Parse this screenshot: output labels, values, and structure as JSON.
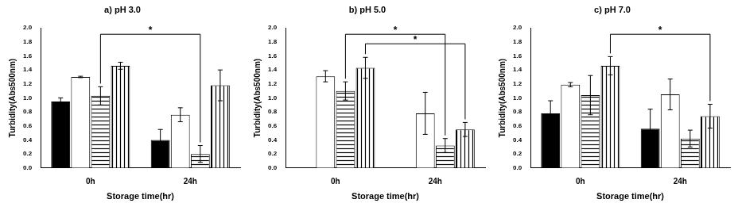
{
  "chart_data": [
    {
      "type": "bar",
      "title": "a) pH 3.0",
      "x_label": "Storage time(hr)",
      "y_label": "Turbidity(Abs500nm)",
      "categories": [
        "0h",
        "24h"
      ],
      "series": [
        {
          "color": "#000000",
          "values": [
            0.95,
            0.4
          ],
          "errors": [
            0.05,
            0.15
          ]
        },
        {
          "color": "#ffffff",
          "values": [
            1.3,
            0.76
          ],
          "errors": [
            0.01,
            0.1
          ]
        },
        {
          "color": "#ffffff",
          "values": [
            1.03,
            0.2
          ],
          "errors": [
            0.13,
            0.12
          ]
        },
        {
          "color": "#ffffff",
          "values": [
            1.46,
            1.18
          ],
          "errors": [
            0.05,
            0.22
          ]
        }
      ],
      "ylim": [
        0,
        2.0
      ],
      "yticks": [
        {
          "value": 0,
          "label": "0.0"
        },
        0.2,
        0.4,
        0.6,
        0.8,
        {
          "value": 1,
          "label": "1.0"
        },
        1.2,
        1.4,
        1.6,
        1.8,
        {
          "value": 2,
          "label": "2.0"
        }
      ],
      "grid": false,
      "annotations": [
        {
          "text": "*",
          "from": {
            "series": 2,
            "category": "0h"
          },
          "to": {
            "series": 2,
            "category": "24h"
          }
        }
      ]
    },
    {
      "type": "bar",
      "title": "b) pH 5.0",
      "x_label": "Storage time(hr)",
      "y_label": "Turbidity(Abs500nm)",
      "categories": [
        "0h",
        "24h"
      ],
      "series": [
        {
          "color": "#000000",
          "values": [
            null,
            null
          ],
          "errors": [
            null,
            null
          ]
        },
        {
          "color": "#ffffff",
          "values": [
            1.31,
            0.78
          ],
          "errors": [
            0.08,
            0.3
          ]
        },
        {
          "color": "#ffffff",
          "values": [
            1.1,
            0.32
          ],
          "errors": [
            0.13,
            0.1
          ]
        },
        {
          "color": "#ffffff",
          "values": [
            1.43,
            0.55
          ],
          "errors": [
            0.15,
            0.1
          ]
        }
      ],
      "ylim": [
        0,
        2.0
      ],
      "yticks": [
        {
          "value": 0,
          "label": "0.0"
        },
        0.2,
        0.4,
        0.6,
        0.8,
        {
          "value": 1,
          "label": "1.0"
        },
        1.2,
        1.4,
        1.6,
        1.8,
        {
          "value": 2,
          "label": "2.0"
        }
      ],
      "grid": false,
      "annotations": [
        {
          "text": "*",
          "from": {
            "series": 2,
            "category": "0h"
          },
          "to": {
            "series": 2,
            "category": "24h"
          }
        },
        {
          "text": "*",
          "from": {
            "series": 3,
            "category": "0h"
          },
          "to": {
            "series": 3,
            "category": "24h"
          }
        }
      ]
    },
    {
      "type": "bar",
      "title": "c) pH 7.0",
      "x_label": "Storage time(hr)",
      "y_label": "Turbidity(Abs500nm)",
      "categories": [
        "0h",
        "24h"
      ],
      "series": [
        {
          "color": "#000000",
          "values": [
            0.78,
            0.56
          ],
          "errors": [
            0.18,
            0.28
          ]
        },
        {
          "color": "#ffffff",
          "values": [
            1.19,
            1.05
          ],
          "errors": [
            0.03,
            0.22
          ]
        },
        {
          "color": "#ffffff",
          "values": [
            1.04,
            0.42
          ],
          "errors": [
            0.28,
            0.12
          ]
        },
        {
          "color": "#ffffff",
          "values": [
            1.46,
            0.74
          ],
          "errors": [
            0.13,
            0.17
          ]
        }
      ],
      "ylim": [
        0,
        2.0
      ],
      "yticks": [
        {
          "value": 0,
          "label": "0.0"
        },
        0.2,
        0.4,
        0.6,
        0.8,
        {
          "value": 1,
          "label": "1.0"
        },
        1.2,
        1.4,
        1.6,
        1.8,
        {
          "value": 2,
          "label": "2.0"
        }
      ],
      "grid": false,
      "annotations": [
        {
          "text": "*",
          "from": {
            "series": 3,
            "category": "0h"
          },
          "to": {
            "series": 3,
            "category": "24h"
          }
        }
      ]
    }
  ]
}
